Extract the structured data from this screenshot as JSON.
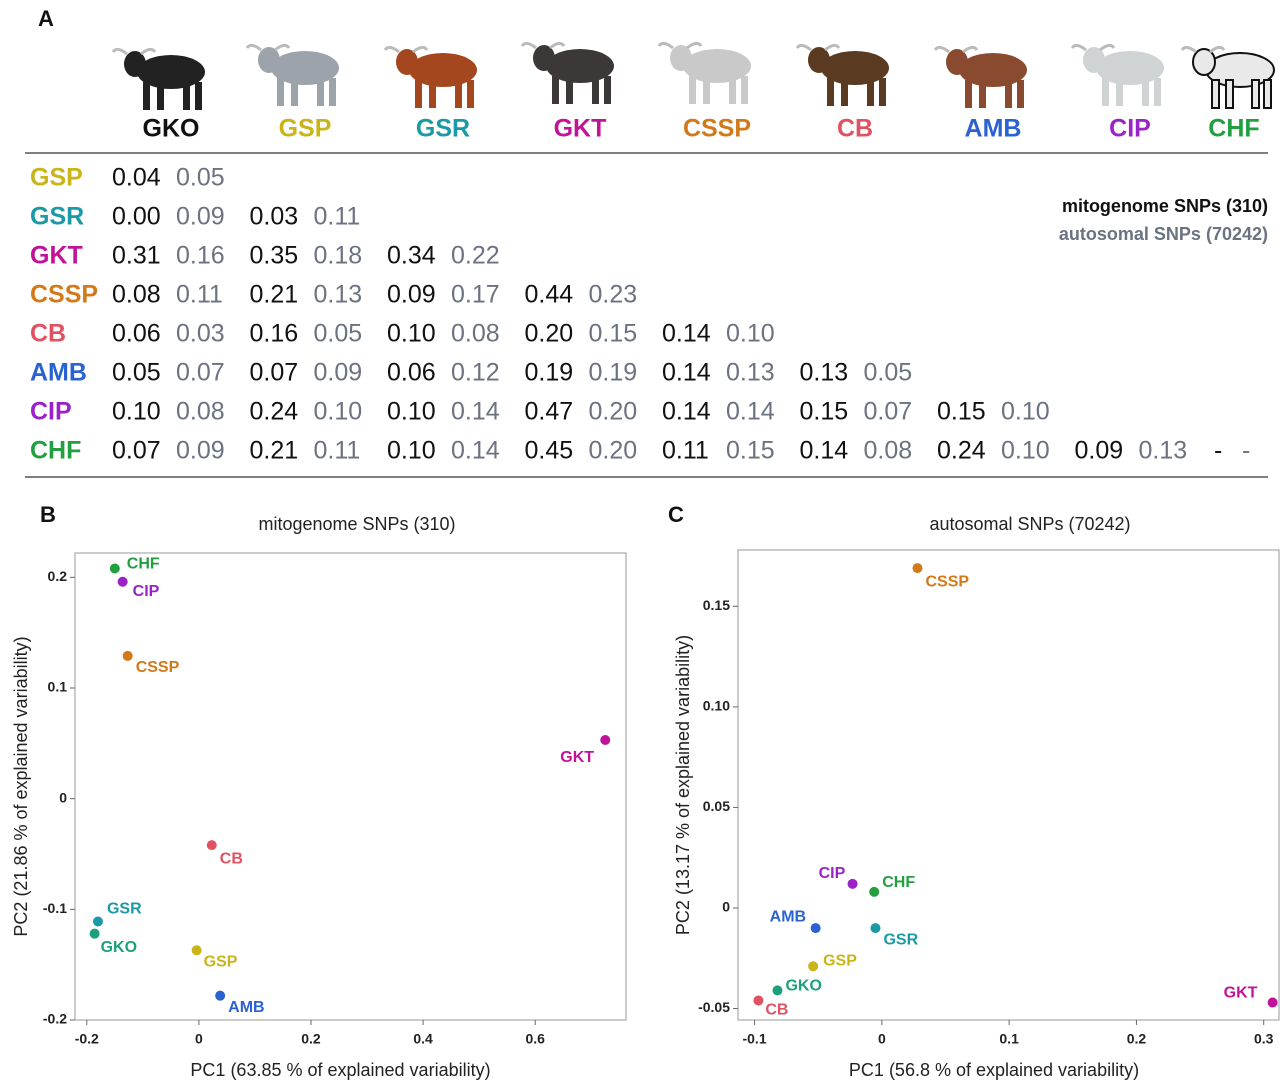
{
  "panel_labels": [
    "A",
    "B",
    "C"
  ],
  "table": {
    "columns": [
      {
        "name": "GKO",
        "color": "#111111"
      },
      {
        "name": "GSP",
        "color": "#c9b41a"
      },
      {
        "name": "GSR",
        "color": "#1b9aa6"
      },
      {
        "name": "GKT",
        "color": "#c0139a"
      },
      {
        "name": "CSSP",
        "color": "#d27a18"
      },
      {
        "name": "CB",
        "color": "#e05262"
      },
      {
        "name": "AMB",
        "color": "#2b62d2"
      },
      {
        "name": "CIP",
        "color": "#9a22c8"
      },
      {
        "name": "CHF",
        "color": "#22a040"
      }
    ],
    "rows": [
      {
        "label": "GSP",
        "color": "#c9b41a",
        "cells": [
          [
            "0.04",
            "0.05"
          ]
        ]
      },
      {
        "label": "GSR",
        "color": "#1b9aa6",
        "cells": [
          [
            "0.00",
            "0.09"
          ],
          [
            "0.03",
            "0.11"
          ]
        ]
      },
      {
        "label": "GKT",
        "color": "#c0139a",
        "cells": [
          [
            "0.31",
            "0.16"
          ],
          [
            "0.35",
            "0.18"
          ],
          [
            "0.34",
            "0.22"
          ]
        ]
      },
      {
        "label": "CSSP",
        "color": "#d27a18",
        "cells": [
          [
            "0.08",
            "0.11"
          ],
          [
            "0.21",
            "0.13"
          ],
          [
            "0.09",
            "0.17"
          ],
          [
            "0.44",
            "0.23"
          ]
        ]
      },
      {
        "label": "CB",
        "color": "#e05262",
        "cells": [
          [
            "0.06",
            "0.03"
          ],
          [
            "0.16",
            "0.05"
          ],
          [
            "0.10",
            "0.08"
          ],
          [
            "0.20",
            "0.15"
          ],
          [
            "0.14",
            "0.10"
          ]
        ]
      },
      {
        "label": "AMB",
        "color": "#2b62d2",
        "cells": [
          [
            "0.05",
            "0.07"
          ],
          [
            "0.07",
            "0.09"
          ],
          [
            "0.06",
            "0.12"
          ],
          [
            "0.19",
            "0.19"
          ],
          [
            "0.14",
            "0.13"
          ],
          [
            "0.13",
            "0.05"
          ]
        ]
      },
      {
        "label": "CIP",
        "color": "#9a22c8",
        "cells": [
          [
            "0.10",
            "0.08"
          ],
          [
            "0.24",
            "0.10"
          ],
          [
            "0.10",
            "0.14"
          ],
          [
            "0.47",
            "0.20"
          ],
          [
            "0.14",
            "0.14"
          ],
          [
            "0.15",
            "0.07"
          ],
          [
            "0.15",
            "0.10"
          ]
        ]
      },
      {
        "label": "CHF",
        "color": "#22a040",
        "cells": [
          [
            "0.07",
            "0.09"
          ],
          [
            "0.21",
            "0.11"
          ],
          [
            "0.10",
            "0.14"
          ],
          [
            "0.45",
            "0.20"
          ],
          [
            "0.11",
            "0.15"
          ],
          [
            "0.14",
            "0.08"
          ],
          [
            "0.24",
            "0.10"
          ],
          [
            "0.09",
            "0.13"
          ],
          [
            "-",
            "-"
          ]
        ]
      }
    ],
    "legend": [
      {
        "text": "mitogenome SNPs (310)",
        "color": "#111111"
      },
      {
        "text": "autosomal SNPs (70242)",
        "color": "#6b7280"
      }
    ]
  },
  "chart_data": [
    {
      "type": "scatter",
      "title": "mitogenome SNPs (310)",
      "x_label": "PC1 (63.85 % of explained variability)",
      "y_label": "PC2 (21.86 % of explained variability)",
      "labels": [
        "CHF",
        "CIP",
        "CSSP",
        "GKT",
        "CB",
        "GSR",
        "GKO",
        "GSP",
        "AMB"
      ],
      "colors": [
        "#22a040",
        "#9a22c8",
        "#d27a18",
        "#c0139a",
        "#e05262",
        "#1b9aa6",
        "#1aa07c",
        "#c9b41a",
        "#2b62d2"
      ],
      "x": [
        -0.15,
        -0.136,
        -0.127,
        0.725,
        0.023,
        -0.18,
        -0.186,
        -0.004,
        0.038
      ],
      "y": [
        0.208,
        0.196,
        0.129,
        0.053,
        -0.042,
        -0.111,
        -0.122,
        -0.137,
        -0.178
      ],
      "xlim": [
        -0.221,
        0.762
      ],
      "ylim": [
        -0.2,
        0.222
      ],
      "xticks": [
        -0.2,
        0,
        0.2,
        0.4,
        0.6
      ],
      "yticks": [
        -0.2,
        -0.1,
        0,
        0.1,
        0.2
      ]
    },
    {
      "type": "scatter",
      "title": "autosomal SNPs (70242)",
      "x_label": "PC1 (56.8 % of explained variability)",
      "y_label": "PC2 (13.17 % of explained variability)",
      "labels": [
        "CHF",
        "CIP",
        "CSSP",
        "GKT",
        "CB",
        "GSR",
        "GKO",
        "GSP",
        "AMB"
      ],
      "colors": [
        "#22a040",
        "#9a22c8",
        "#d27a18",
        "#c0139a",
        "#e05262",
        "#1b9aa6",
        "#1aa07c",
        "#c9b41a",
        "#2b62d2"
      ],
      "x": [
        -0.006,
        -0.023,
        0.028,
        0.307,
        -0.097,
        -0.005,
        -0.082,
        -0.054,
        -0.052
      ],
      "y": [
        0.008,
        0.012,
        0.169,
        -0.047,
        -0.046,
        -0.01,
        -0.041,
        -0.029,
        -0.01
      ],
      "xlim": [
        -0.113,
        0.312
      ],
      "ylim": [
        -0.0557,
        0.178
      ],
      "xticks": [
        -0.1,
        0,
        0.1,
        0.2,
        0.3
      ],
      "yticks": [
        -0.05,
        0,
        0.05,
        {
          "value": 0.1,
          "label": "0.10"
        },
        0.15
      ]
    }
  ]
}
